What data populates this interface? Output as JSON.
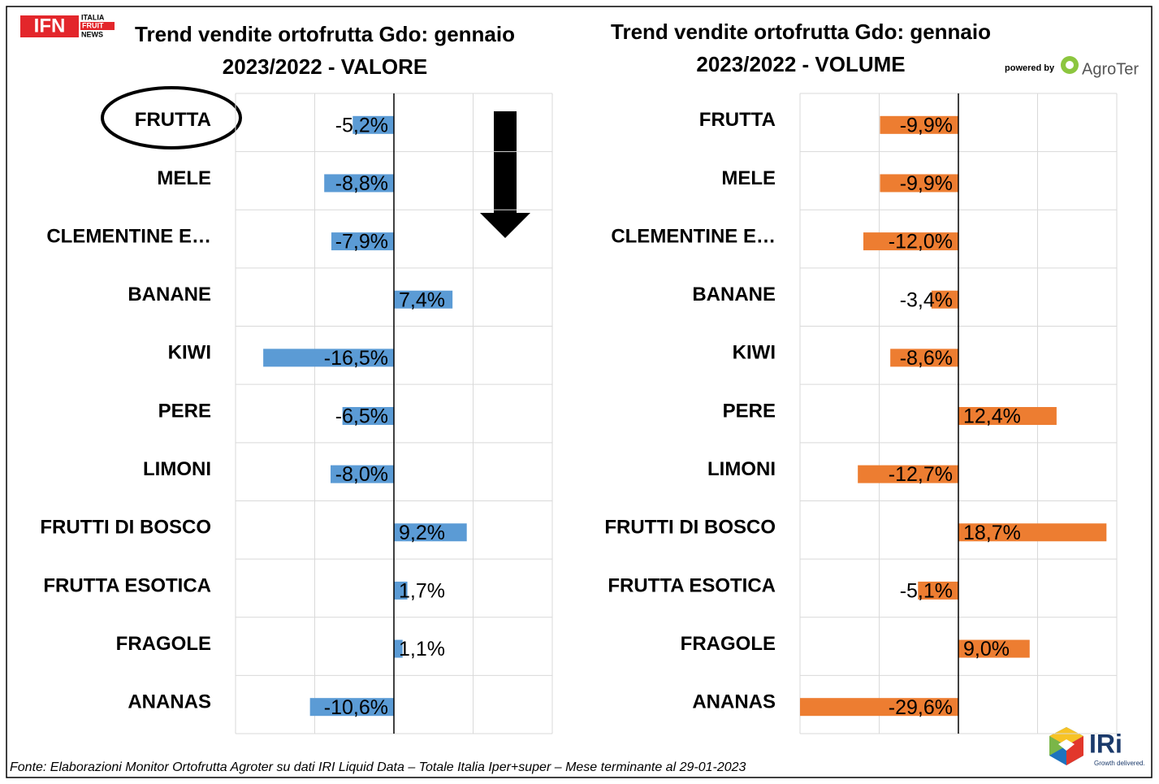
{
  "chart_data": [
    {
      "type": "barh",
      "title": "Trend vendite ortofrutta Gdo: gennaio 2023/2022 - VALORE",
      "categories": [
        "FRUTTA",
        "MELE",
        "CLEMENTINE E…",
        "BANANE",
        "KIWI",
        "PERE",
        "LIMONI",
        "FRUTTI DI BOSCO",
        "FRUTTA ESOTICA",
        "FRAGOLE",
        "ANANAS"
      ],
      "values": [
        -5.2,
        -8.8,
        -7.9,
        7.4,
        -16.5,
        -6.5,
        -8.0,
        9.2,
        1.7,
        1.1,
        -10.6
      ],
      "value_labels": [
        "-5,2%",
        "-8,8%",
        "-7,9%",
        "7,4%",
        "-16,5%",
        "-6,5%",
        "-8,0%",
        "9,2%",
        "1,7%",
        "1,1%",
        "-10,6%"
      ],
      "color": "#5b9bd5",
      "xlim": [
        -20,
        20
      ],
      "xticks": [
        -20,
        -10,
        0,
        10,
        20
      ],
      "grid": true
    },
    {
      "type": "barh",
      "title": "Trend vendite ortofrutta Gdo: gennaio 2023/2022 - VOLUME",
      "categories": [
        "FRUTTA",
        "MELE",
        "CLEMENTINE E…",
        "BANANE",
        "KIWI",
        "PERE",
        "LIMONI",
        "FRUTTI DI BOSCO",
        "FRUTTA ESOTICA",
        "FRAGOLE",
        "ANANAS"
      ],
      "values": [
        -9.9,
        -9.9,
        -12.0,
        -3.4,
        -8.6,
        12.4,
        -12.7,
        18.7,
        -5.1,
        9.0,
        -29.6
      ],
      "value_labels": [
        "-9,9%",
        "-9,9%",
        "-12,0%",
        "-3,4%",
        "-8,6%",
        "12,4%",
        "-12,7%",
        "18,7%",
        "-5,1%",
        "9,0%",
        "-29,6%"
      ],
      "color": "#ed7d31",
      "xlim": [
        -20,
        20
      ],
      "xticks": [
        -20,
        -10,
        0,
        10,
        20
      ],
      "grid": true
    }
  ],
  "source": "Fonte: Elaborazioni Monitor Ortofrutta Agroter su dati IRI Liquid Data – Totale Italia Iper+super – Mese terminante al 29-01-2023",
  "logos": {
    "ifn": "IFN",
    "ifn_lines": [
      "ITALIA",
      "FRUIT",
      "NEWS"
    ],
    "powered_by": "powered by",
    "agroter": "AgroTer",
    "iri": "IRi",
    "iri_tagline": "Growth delivered."
  }
}
